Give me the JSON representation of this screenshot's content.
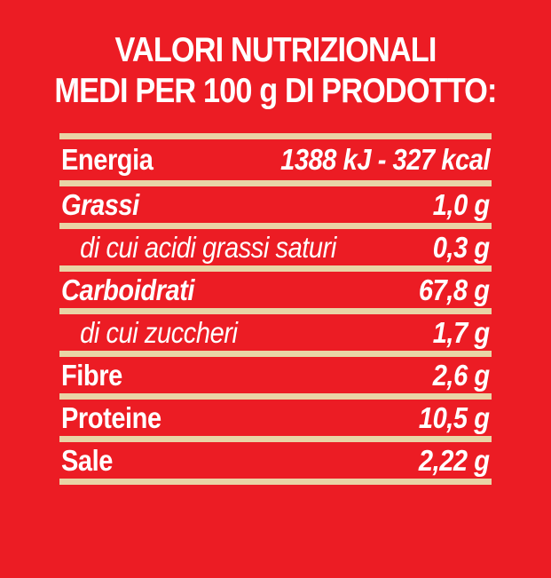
{
  "title": {
    "line1": "VALORI NUTRIZIONALI",
    "line2": "MEDI PER 100 g DI PRODOTTO:"
  },
  "colors": {
    "background": "#EC1C24",
    "separator": "#E9D4A6",
    "text": "#FFFFFF"
  },
  "table": {
    "rows": [
      {
        "label": "Energia",
        "value": "1388 kJ - 327 kcal",
        "label_style": "bold",
        "indent": false
      },
      {
        "label": "Grassi",
        "value": "1,0 g",
        "label_style": "bold-italic",
        "indent": false
      },
      {
        "label": "di cui acidi grassi saturi",
        "value": "0,3 g",
        "label_style": "italic",
        "indent": true
      },
      {
        "label": "Carboidrati",
        "value": "67,8 g",
        "label_style": "bold-italic",
        "indent": false
      },
      {
        "label": "di cui zuccheri",
        "value": "1,7 g",
        "label_style": "italic",
        "indent": true
      },
      {
        "label": "Fibre",
        "value": "2,6 g",
        "label_style": "bold",
        "indent": false
      },
      {
        "label": "Proteine",
        "value": "10,5 g",
        "label_style": "bold",
        "indent": false
      },
      {
        "label": "Sale",
        "value": "2,22 g",
        "label_style": "bold",
        "indent": false
      }
    ]
  }
}
